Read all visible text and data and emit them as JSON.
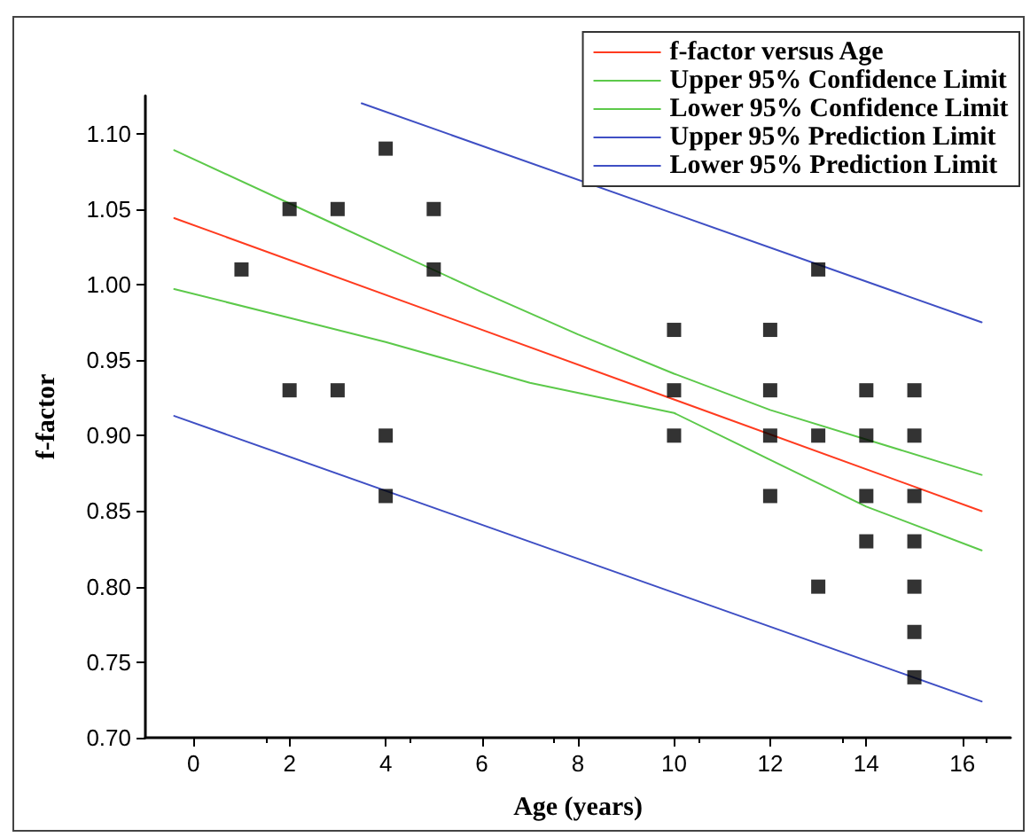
{
  "chart_data": {
    "type": "line",
    "xlabel": "Age (years)",
    "ylabel": "f-factor",
    "xlim": [
      -1,
      17
    ],
    "xticks": [
      0,
      2,
      4,
      6,
      8,
      10,
      12,
      14,
      16
    ],
    "ylim": [
      0.7,
      1.125
    ],
    "yticks": [
      {
        "value": 0.7,
        "label": "0.70"
      },
      {
        "value": 0.75,
        "label": "0.75"
      },
      {
        "value": 0.8,
        "label": "0.80"
      },
      {
        "value": 0.85,
        "label": "0.85"
      },
      {
        "value": 0.9,
        "label": "0.90"
      },
      {
        "value": 0.95,
        "label": "0.95"
      },
      {
        "value": 1.0,
        "label": "1.00"
      },
      {
        "value": 1.05,
        "label": "1.05"
      },
      {
        "value": 1.1,
        "label": "1.10"
      }
    ],
    "grid": false,
    "legend": "top right",
    "line_style": "solid",
    "series": [
      {
        "type": "scatter",
        "marker": "square",
        "color": "#000000",
        "x": [
          1,
          2,
          2,
          3,
          3,
          4,
          4,
          4,
          5,
          5,
          10,
          10,
          10,
          12,
          12,
          12,
          12,
          13,
          13,
          13,
          14,
          14,
          14,
          14,
          15,
          15,
          15,
          15,
          15,
          15,
          15
        ],
        "values": [
          1.01,
          1.05,
          0.93,
          1.05,
          0.93,
          1.09,
          0.9,
          0.86,
          1.05,
          1.01,
          0.97,
          0.93,
          0.9,
          0.97,
          0.93,
          0.9,
          0.86,
          1.01,
          0.9,
          0.8,
          0.93,
          0.9,
          0.86,
          0.83,
          0.93,
          0.9,
          0.86,
          0.83,
          0.8,
          0.77,
          0.74
        ]
      },
      {
        "name": "f-factor versus Age",
        "marker": "none",
        "color": "#ff3b1f",
        "x": [
          -0.4,
          16.4
        ],
        "values": [
          1.044,
          0.85
        ]
      },
      {
        "name": "Upper 95% Confidence Limit",
        "marker": "none",
        "color": "#5cc94a",
        "x": [
          -0.4,
          3,
          6,
          8,
          10,
          12,
          16.4
        ],
        "values": [
          1.089,
          1.039,
          0.995,
          0.967,
          0.941,
          0.917,
          0.874
        ]
      },
      {
        "name": "Lower 95% Confidence Limit",
        "marker": "none",
        "color": "#5cc94a",
        "x": [
          -0.4,
          2,
          4,
          7,
          10,
          12,
          14,
          16.4
        ],
        "values": [
          0.997,
          0.978,
          0.962,
          0.935,
          0.915,
          0.884,
          0.853,
          0.824
        ]
      },
      {
        "name": "Upper 95% Prediction Limit",
        "marker": "none",
        "color": "#3f4fc4",
        "x": [
          3.5,
          16.4
        ],
        "values": [
          1.12,
          0.975
        ]
      },
      {
        "name": "Lower 95% Prediction Limit",
        "marker": "none",
        "color": "#3f4fc4",
        "x": [
          -0.4,
          16.4
        ],
        "values": [
          0.913,
          0.724
        ]
      }
    ]
  }
}
